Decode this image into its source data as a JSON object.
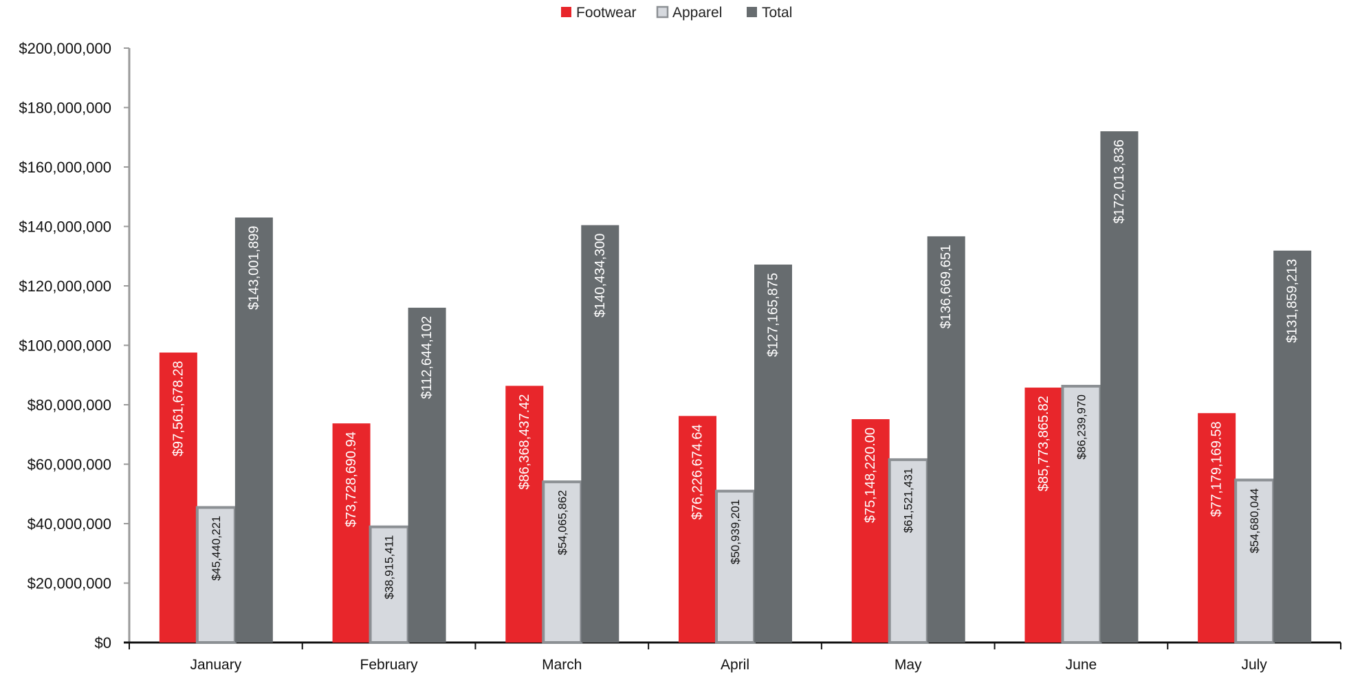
{
  "chart_data": {
    "type": "bar",
    "title": "",
    "xlabel": "",
    "ylabel": "",
    "categories": [
      "January",
      "February",
      "March",
      "April",
      "May",
      "June",
      "July"
    ],
    "series": [
      {
        "name": "Footwear",
        "color": "#e8262b",
        "values": [
          97561678.28,
          73728690.94,
          86368437.42,
          76226674.64,
          75148220.0,
          85773865.82,
          77179169.58
        ],
        "labels": [
          "$97,561,678.28",
          "$73,728,690.94",
          "$86,368,437.42",
          "$76,226,674.64",
          "$75,148,220.00",
          "$85,773,865.82",
          "$77,179,169.58"
        ]
      },
      {
        "name": "Apparel",
        "color": "#d6d9de",
        "border": "#8c9094",
        "values": [
          45440221,
          38915411,
          54065862,
          50939201,
          61521431,
          86239970,
          54680044
        ],
        "labels": [
          "$45,440,221",
          "$38,915,411",
          "$54,065,862",
          "$50,939,201",
          "$61,521,431",
          "$86,239,970",
          "$54,680,044"
        ]
      },
      {
        "name": "Total",
        "color": "#676c6f",
        "values": [
          143001899,
          112644102,
          140434300,
          127165875,
          136669651,
          172013836,
          131859213
        ],
        "labels": [
          "$143,001,899",
          "$112,644,102",
          "$140,434,300",
          "$127,165,875",
          "$136,669,651",
          "$172,013,836",
          "$131,859,213"
        ]
      }
    ],
    "ylim": [
      0,
      200000000
    ],
    "yticks": [
      0,
      20000000,
      40000000,
      60000000,
      80000000,
      100000000,
      120000000,
      140000000,
      160000000,
      180000000,
      200000000
    ],
    "ytick_labels": [
      "$0",
      "$20,000,000",
      "$40,000,000",
      "$60,000,000",
      "$80,000,000",
      "$100,000,000",
      "$120,000,000",
      "$140,000,000",
      "$160,000,000",
      "$180,000,000",
      "$200,000,000"
    ],
    "grid": false,
    "legend_position": "top-center",
    "data_labels": "vertical, inside bars"
  }
}
